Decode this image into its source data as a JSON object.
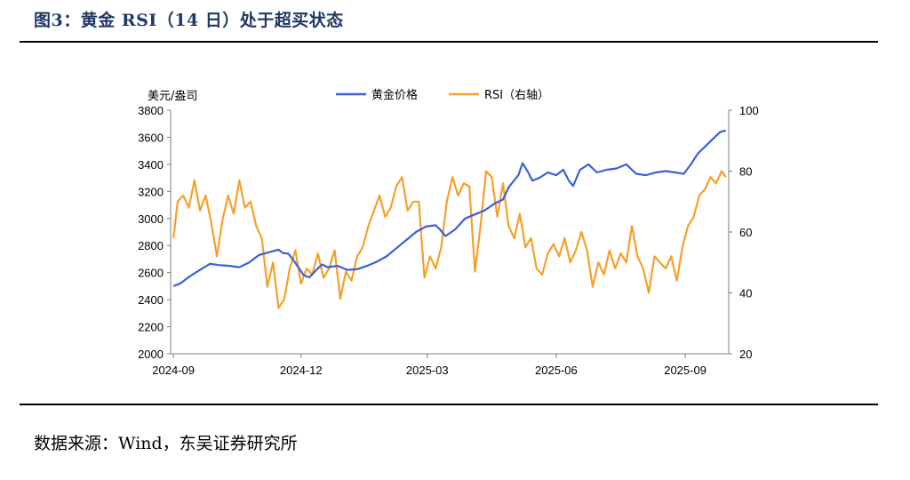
{
  "figure": {
    "title": "图3：黄金 RSI（14 日）处于超买状态",
    "source": "数据来源：Wind，东吴证券研究所"
  },
  "colors": {
    "gold": "#3a5fd9",
    "rsi": "#f5a02a",
    "axis": "#7f7f7f",
    "title": "#1f3864"
  },
  "chart_data": {
    "type": "line",
    "title": "",
    "ylabel": "美元/盎司",
    "y2label": "",
    "x_ticks": [
      "2024-09",
      "2024-12",
      "2025-03",
      "2025-06",
      "2025-09"
    ],
    "ylim": [
      2000,
      3800
    ],
    "y_ticks": [
      2000,
      2200,
      2400,
      2600,
      2800,
      3000,
      3200,
      3400,
      3600,
      3800
    ],
    "y2lim": [
      20,
      100
    ],
    "y2_ticks": [
      20,
      40,
      60,
      80,
      100
    ],
    "legend": "top-center",
    "series": [
      {
        "name": "黄金价格",
        "axis": "left",
        "color": "#3a5fd9",
        "points": [
          [
            "2024-09-01",
            2500
          ],
          [
            "2024-09-06",
            2520
          ],
          [
            "2024-09-13",
            2575
          ],
          [
            "2024-09-20",
            2620
          ],
          [
            "2024-09-27",
            2665
          ],
          [
            "2024-10-04",
            2655
          ],
          [
            "2024-10-11",
            2650
          ],
          [
            "2024-10-18",
            2640
          ],
          [
            "2024-10-25",
            2675
          ],
          [
            "2024-11-01",
            2730
          ],
          [
            "2024-11-08",
            2750
          ],
          [
            "2024-11-15",
            2770
          ],
          [
            "2024-11-18",
            2745
          ],
          [
            "2024-11-22",
            2740
          ],
          [
            "2024-11-25",
            2700
          ],
          [
            "2024-11-29",
            2640
          ],
          [
            "2024-12-03",
            2580
          ],
          [
            "2024-12-07",
            2565
          ],
          [
            "2024-12-12",
            2620
          ],
          [
            "2024-12-16",
            2660
          ],
          [
            "2024-12-20",
            2640
          ],
          [
            "2024-12-27",
            2650
          ],
          [
            "2025-01-03",
            2620
          ],
          [
            "2025-01-10",
            2625
          ],
          [
            "2025-01-17",
            2650
          ],
          [
            "2025-01-24",
            2680
          ],
          [
            "2025-01-31",
            2720
          ],
          [
            "2025-02-07",
            2780
          ],
          [
            "2025-02-14",
            2840
          ],
          [
            "2025-02-21",
            2900
          ],
          [
            "2025-02-28",
            2940
          ],
          [
            "2025-03-07",
            2950
          ],
          [
            "2025-03-10",
            2920
          ],
          [
            "2025-03-14",
            2870
          ],
          [
            "2025-03-21",
            2920
          ],
          [
            "2025-03-28",
            3000
          ],
          [
            "2025-04-04",
            3030
          ],
          [
            "2025-04-11",
            3060
          ],
          [
            "2025-04-18",
            3110
          ],
          [
            "2025-04-24",
            3140
          ],
          [
            "2025-04-28",
            3230
          ],
          [
            "2025-05-05",
            3320
          ],
          [
            "2025-05-08",
            3410
          ],
          [
            "2025-05-12",
            3340
          ],
          [
            "2025-05-15",
            3280
          ],
          [
            "2025-05-20",
            3300
          ],
          [
            "2025-05-26",
            3340
          ],
          [
            "2025-06-01",
            3320
          ],
          [
            "2025-06-06",
            3360
          ],
          [
            "2025-06-10",
            3280
          ],
          [
            "2025-06-13",
            3240
          ],
          [
            "2025-06-18",
            3360
          ],
          [
            "2025-06-24",
            3400
          ],
          [
            "2025-06-30",
            3340
          ],
          [
            "2025-07-07",
            3360
          ],
          [
            "2025-07-14",
            3370
          ],
          [
            "2025-07-21",
            3400
          ],
          [
            "2025-07-28",
            3330
          ],
          [
            "2025-08-04",
            3320
          ],
          [
            "2025-08-11",
            3340
          ],
          [
            "2025-08-18",
            3350
          ],
          [
            "2025-08-25",
            3340
          ],
          [
            "2025-08-31",
            3330
          ],
          [
            "2025-09-05",
            3400
          ],
          [
            "2025-09-10",
            3480
          ],
          [
            "2025-09-16",
            3540
          ],
          [
            "2025-09-22",
            3600
          ],
          [
            "2025-09-26",
            3640
          ],
          [
            "2025-09-30",
            3650
          ]
        ]
      },
      {
        "name": "RSI（右轴）",
        "axis": "right",
        "color": "#f5a02a",
        "points": [
          [
            "2024-09-01",
            58
          ],
          [
            "2024-09-04",
            70
          ],
          [
            "2024-09-08",
            72
          ],
          [
            "2024-09-12",
            68
          ],
          [
            "2024-09-16",
            77
          ],
          [
            "2024-09-20",
            67
          ],
          [
            "2024-09-24",
            72
          ],
          [
            "2024-09-28",
            63
          ],
          [
            "2024-10-02",
            52
          ],
          [
            "2024-10-06",
            64
          ],
          [
            "2024-10-10",
            72
          ],
          [
            "2024-10-14",
            66
          ],
          [
            "2024-10-18",
            77
          ],
          [
            "2024-10-22",
            68
          ],
          [
            "2024-10-26",
            70
          ],
          [
            "2024-10-30",
            62
          ],
          [
            "2024-11-03",
            58
          ],
          [
            "2024-11-07",
            42
          ],
          [
            "2024-11-11",
            50
          ],
          [
            "2024-11-15",
            35
          ],
          [
            "2024-11-19",
            38
          ],
          [
            "2024-11-23",
            48
          ],
          [
            "2024-11-27",
            54
          ],
          [
            "2024-12-01",
            43
          ],
          [
            "2024-12-05",
            48
          ],
          [
            "2024-12-09",
            46
          ],
          [
            "2024-12-13",
            53
          ],
          [
            "2024-12-17",
            45
          ],
          [
            "2024-12-21",
            48
          ],
          [
            "2024-12-25",
            54
          ],
          [
            "2024-12-29",
            38
          ],
          [
            "2025-01-02",
            47
          ],
          [
            "2025-01-06",
            44
          ],
          [
            "2025-01-10",
            52
          ],
          [
            "2025-01-14",
            55
          ],
          [
            "2025-01-18",
            62
          ],
          [
            "2025-01-22",
            67
          ],
          [
            "2025-01-26",
            72
          ],
          [
            "2025-01-30",
            65
          ],
          [
            "2025-02-03",
            68
          ],
          [
            "2025-02-07",
            75
          ],
          [
            "2025-02-11",
            78
          ],
          [
            "2025-02-15",
            67
          ],
          [
            "2025-02-19",
            70
          ],
          [
            "2025-02-23",
            70
          ],
          [
            "2025-02-27",
            45
          ],
          [
            "2025-03-03",
            52
          ],
          [
            "2025-03-07",
            48
          ],
          [
            "2025-03-11",
            55
          ],
          [
            "2025-03-15",
            70
          ],
          [
            "2025-03-19",
            78
          ],
          [
            "2025-03-23",
            72
          ],
          [
            "2025-03-27",
            76
          ],
          [
            "2025-03-31",
            75
          ],
          [
            "2025-04-04",
            47
          ],
          [
            "2025-04-08",
            62
          ],
          [
            "2025-04-12",
            80
          ],
          [
            "2025-04-16",
            78
          ],
          [
            "2025-04-20",
            65
          ],
          [
            "2025-04-24",
            76
          ],
          [
            "2025-04-28",
            62
          ],
          [
            "2025-05-02",
            58
          ],
          [
            "2025-05-06",
            66
          ],
          [
            "2025-05-10",
            55
          ],
          [
            "2025-05-14",
            58
          ],
          [
            "2025-05-18",
            48
          ],
          [
            "2025-05-22",
            46
          ],
          [
            "2025-05-26",
            53
          ],
          [
            "2025-05-30",
            56
          ],
          [
            "2025-06-03",
            52
          ],
          [
            "2025-06-07",
            58
          ],
          [
            "2025-06-11",
            50
          ],
          [
            "2025-06-15",
            54
          ],
          [
            "2025-06-19",
            60
          ],
          [
            "2025-06-23",
            54
          ],
          [
            "2025-06-27",
            42
          ],
          [
            "2025-07-01",
            50
          ],
          [
            "2025-07-05",
            46
          ],
          [
            "2025-07-09",
            54
          ],
          [
            "2025-07-13",
            48
          ],
          [
            "2025-07-17",
            53
          ],
          [
            "2025-07-21",
            50
          ],
          [
            "2025-07-25",
            62
          ],
          [
            "2025-07-29",
            52
          ],
          [
            "2025-08-02",
            48
          ],
          [
            "2025-08-06",
            40
          ],
          [
            "2025-08-10",
            52
          ],
          [
            "2025-08-14",
            50
          ],
          [
            "2025-08-18",
            48
          ],
          [
            "2025-08-22",
            52
          ],
          [
            "2025-08-26",
            44
          ],
          [
            "2025-08-30",
            55
          ],
          [
            "2025-09-03",
            62
          ],
          [
            "2025-09-07",
            65
          ],
          [
            "2025-09-11",
            72
          ],
          [
            "2025-09-15",
            74
          ],
          [
            "2025-09-19",
            78
          ],
          [
            "2025-09-23",
            76
          ],
          [
            "2025-09-27",
            80
          ],
          [
            "2025-09-30",
            78
          ]
        ]
      }
    ]
  }
}
